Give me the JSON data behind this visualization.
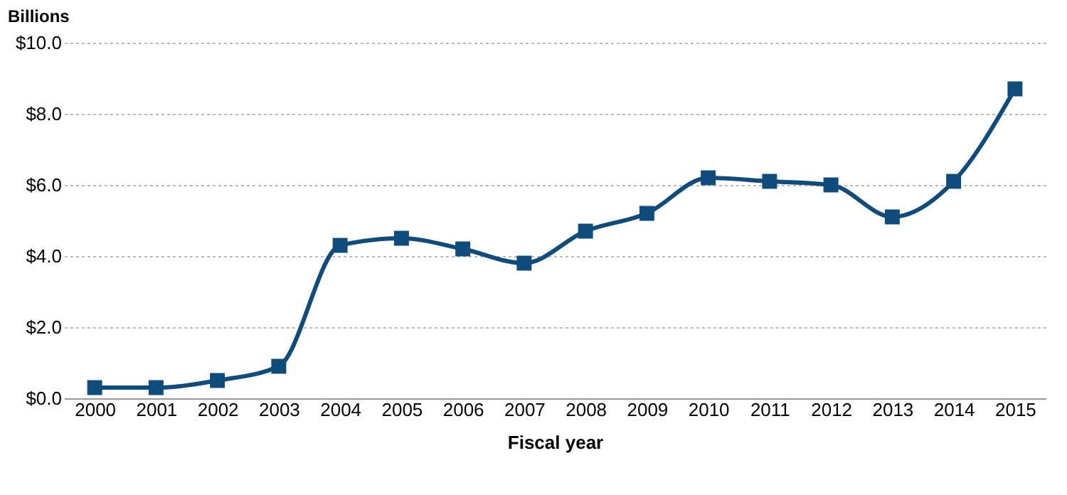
{
  "chart_data": {
    "type": "line",
    "xlabel": "Fiscal year",
    "ylabel": "Billions",
    "categories": [
      "2000",
      "2001",
      "2002",
      "2003",
      "2004",
      "2005",
      "2006",
      "2007",
      "2008",
      "2009",
      "2010",
      "2011",
      "2012",
      "2013",
      "2014",
      "2015"
    ],
    "series": [
      {
        "color": "#0f4c7c",
        "values": [
          0.3,
          0.3,
          0.5,
          0.9,
          4.3,
          4.5,
          4.2,
          3.8,
          4.7,
          5.2,
          6.2,
          6.1,
          6.0,
          5.1,
          6.1,
          8.7
        ]
      }
    ],
    "ylim": [
      0,
      10
    ],
    "yticks": [
      {
        "value": 0,
        "label": "$0.0"
      },
      {
        "value": 2,
        "label": "$2.0"
      },
      {
        "value": 4,
        "label": "$4.0"
      },
      {
        "value": 6,
        "label": "$6.0"
      },
      {
        "value": 8,
        "label": "$8.0"
      },
      {
        "value": 10,
        "label": "$10.0"
      }
    ],
    "grid": "y",
    "marker": "square",
    "line_style": "solid"
  }
}
